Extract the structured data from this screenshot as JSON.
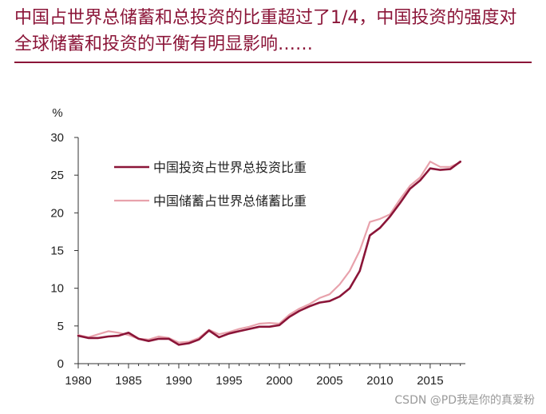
{
  "headline": "中国占世界总储蓄和总投资的比重超过了1/4，中国投资的强度对全球储蓄和投资的平衡有明显影响……",
  "watermark": "CSDN @PD我是你的真爱粉",
  "colors": {
    "headline": "#8b1538",
    "investment": "#8b1538",
    "savings": "#e8a2ac",
    "axis": "#333333"
  },
  "chart_data": {
    "type": "line",
    "title": "",
    "ylabel": "%",
    "xlabel": "",
    "xlim": [
      1980,
      2018.5
    ],
    "ylim": [
      0,
      30
    ],
    "xticks": [
      1980,
      1985,
      1990,
      1995,
      2000,
      2005,
      2010,
      2015
    ],
    "yticks": [
      0,
      5,
      10,
      15,
      20,
      25,
      30
    ],
    "legend_position": "top-left",
    "x": [
      1980,
      1981,
      1982,
      1983,
      1984,
      1985,
      1986,
      1987,
      1988,
      1989,
      1990,
      1991,
      1992,
      1993,
      1994,
      1995,
      1996,
      1997,
      1998,
      1999,
      2000,
      2001,
      2002,
      2003,
      2004,
      2005,
      2006,
      2007,
      2008,
      2009,
      2010,
      2011,
      2012,
      2013,
      2014,
      2015,
      2016,
      2017,
      2018
    ],
    "series": [
      {
        "name": "中国投资占世界总投资比重",
        "color": "#8b1538",
        "values": [
          3.7,
          3.4,
          3.4,
          3.6,
          3.7,
          4.1,
          3.3,
          3.0,
          3.3,
          3.3,
          2.5,
          2.7,
          3.2,
          4.4,
          3.5,
          4.0,
          4.3,
          4.6,
          4.9,
          4.9,
          5.1,
          6.2,
          7.0,
          7.6,
          8.1,
          8.3,
          8.9,
          10.0,
          12.3,
          17.0,
          18.0,
          19.5,
          21.3,
          23.2,
          24.3,
          25.9,
          25.7,
          25.8,
          26.8
        ]
      },
      {
        "name": "中国储蓄占世界总储蓄比重",
        "color": "#e8a2ac",
        "values": [
          3.8,
          3.5,
          3.9,
          4.3,
          4.1,
          3.8,
          3.3,
          3.2,
          3.6,
          3.4,
          2.8,
          2.9,
          3.4,
          4.5,
          3.9,
          4.2,
          4.6,
          4.9,
          5.3,
          5.4,
          5.3,
          6.5,
          7.3,
          7.9,
          8.7,
          9.2,
          10.5,
          12.3,
          15.0,
          18.8,
          19.2,
          19.8,
          21.8,
          23.6,
          24.7,
          26.8,
          26.1,
          26.1,
          26.7
        ]
      }
    ]
  }
}
